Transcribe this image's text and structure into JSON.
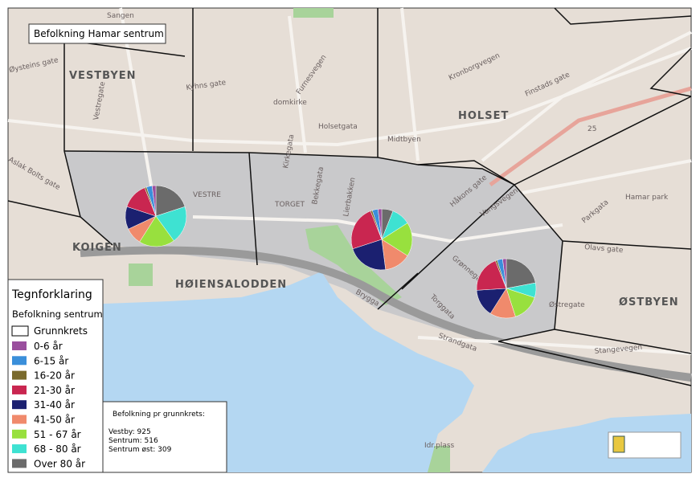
{
  "title": "Befolkning Hamar sentrum",
  "legend": {
    "title": "Tegnforklaring",
    "subtitle": "Befolkning sentrum",
    "boundary_label": "Grunnkrets",
    "items": [
      {
        "label": "0-6 år",
        "color": "#9a4f9e"
      },
      {
        "label": "6-15 år",
        "color": "#3a8fda"
      },
      {
        "label": "16-20 år",
        "color": "#7a6a2c"
      },
      {
        "label": "21-30 år",
        "color": "#c92650"
      },
      {
        "label": "31-40 år",
        "color": "#1b2070"
      },
      {
        "label": "41-50 år",
        "color": "#f08a6c"
      },
      {
        "label": "51 - 67 år",
        "color": "#98e03e"
      },
      {
        "label": "68 - 80 år",
        "color": "#3ee2d2"
      },
      {
        "label": "Over 80 år",
        "color": "#6b6b6b"
      }
    ]
  },
  "info": {
    "title": "Befolkning pr grunnkrets:",
    "lines": [
      "Vestby: 925",
      "Sentrum: 516",
      "Sentrum øst: 309"
    ]
  },
  "pies": [
    {
      "values": [
        2,
        3,
        1,
        14,
        12,
        9,
        19,
        20,
        20
      ]
    },
    {
      "values": [
        2,
        3,
        1,
        24,
        22,
        14,
        18,
        10,
        6
      ]
    },
    {
      "values": [
        2,
        3,
        1,
        20,
        15,
        14,
        15,
        8,
        22
      ]
    }
  ],
  "map_labels": [
    "VESTBYEN",
    "HOLSET",
    "ØSTBYEN",
    "KOIGEN",
    "HØIENSALODDEN",
    "TORGET",
    "VESTRE",
    "Sangen",
    "Øysteins gate",
    "Kyhns gate",
    "domkirke",
    "Holsetgata",
    "Midtbyen",
    "Kronborgvegen",
    "Finstads gate",
    "Grønnegata",
    "Torggata",
    "Østregate",
    "Strandgata",
    "Stangevegen",
    "Parkgata",
    "Hamar park",
    "Olavs gate",
    "Aslak Bolts gate",
    "Furnesvegen",
    "Vestregate",
    "Kirkegata",
    "Bekkegata",
    "Lierbakken",
    "Håkons gate",
    "Vangsvegen",
    "Idr.plass",
    "Brygga",
    "25"
  ]
}
